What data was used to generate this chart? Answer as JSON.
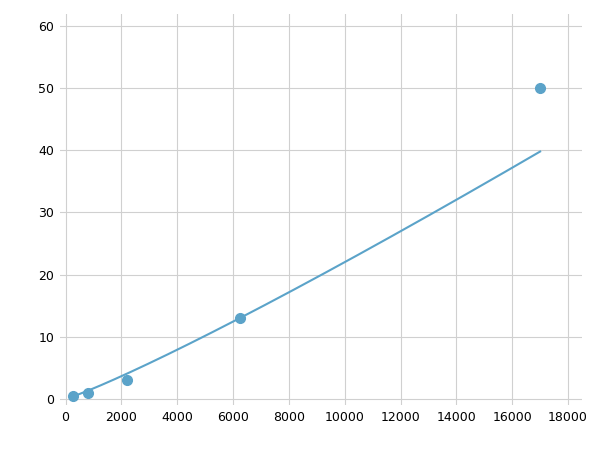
{
  "x_points": [
    250,
    800,
    2200,
    6250,
    17000
  ],
  "y_points": [
    0.5,
    1.0,
    3.0,
    13.0,
    50.0
  ],
  "line_color": "#5ba3c9",
  "marker_color": "#5ba3c9",
  "marker_size": 7,
  "line_width": 1.5,
  "xlim": [
    -200,
    18500
  ],
  "ylim": [
    -1,
    62
  ],
  "xticks": [
    0,
    2000,
    4000,
    6000,
    8000,
    10000,
    12000,
    14000,
    16000,
    18000
  ],
  "yticks": [
    0,
    10,
    20,
    30,
    40,
    50,
    60
  ],
  "grid_color": "#d0d0d0",
  "background_color": "#ffffff",
  "figure_background": "#ffffff"
}
